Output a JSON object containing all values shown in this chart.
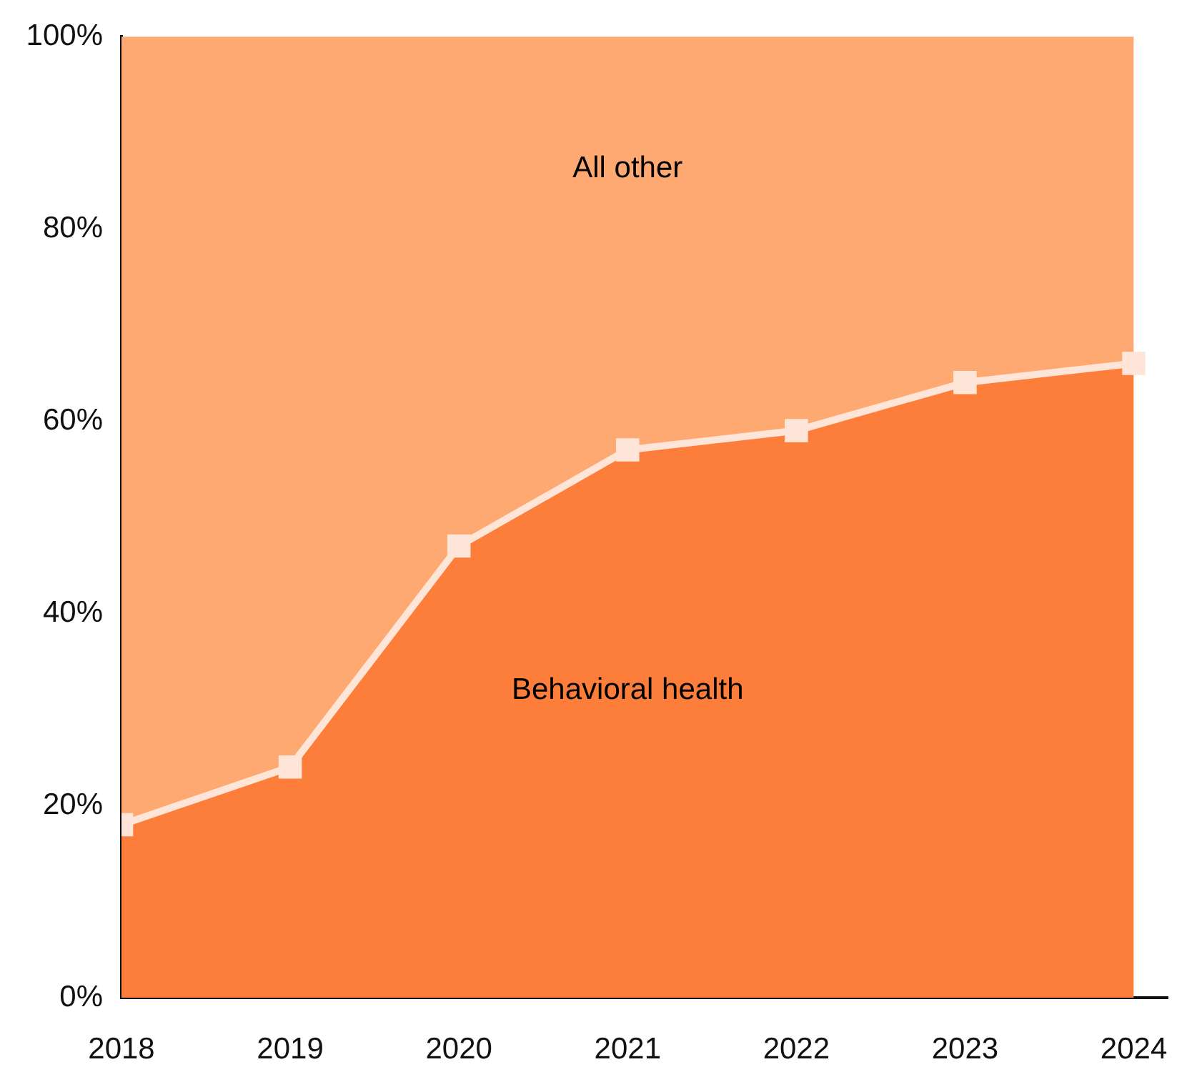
{
  "chart_data": {
    "type": "area",
    "stacked": true,
    "x": [
      2018,
      2019,
      2020,
      2021,
      2022,
      2023,
      2024
    ],
    "xlim": [
      2018,
      2024.2
    ],
    "xticks": [
      2018,
      2019,
      2020,
      2021,
      2022,
      2023,
      2024
    ],
    "ylim": [
      0,
      100
    ],
    "yticks": [
      {
        "value": 0,
        "label": "0%"
      },
      {
        "value": 20,
        "label": "20%"
      },
      {
        "value": 40,
        "label": "40%"
      },
      {
        "value": 60,
        "label": "60%"
      },
      {
        "value": 80,
        "label": "80%"
      },
      {
        "value": 100,
        "label": "100%"
      }
    ],
    "series": [
      {
        "name": "Behavioral health",
        "color": "#fd7e3b",
        "values": [
          18,
          24,
          47,
          57,
          59,
          64,
          66
        ],
        "marker": "square",
        "line_style": "solid"
      },
      {
        "name": "All other",
        "color": "#fea972",
        "values": [
          82,
          76,
          53,
          43,
          41,
          36,
          34
        ]
      }
    ]
  }
}
